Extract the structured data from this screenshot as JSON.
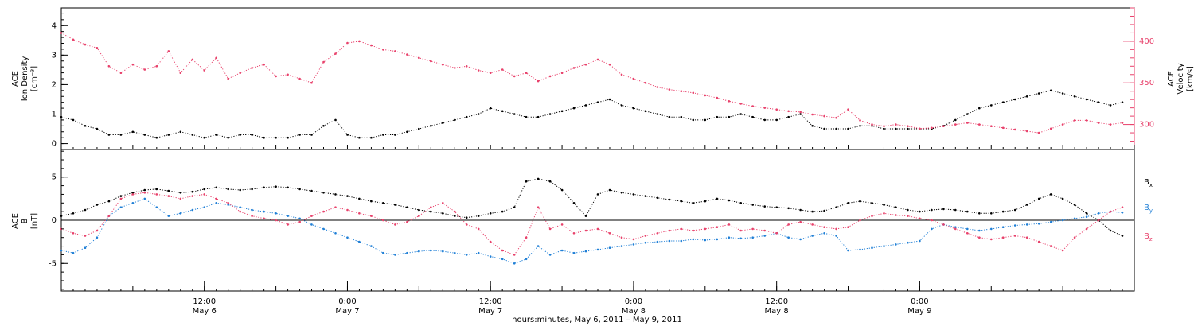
{
  "chart_data": [
    {
      "type": "scatter",
      "panel": "top",
      "ylabel": "ACE\nIon Density\n[cm⁻³]",
      "ylabel_lines": [
        "ACE",
        "Ion Density",
        "[cm⁻³]"
      ],
      "y2label_lines": [
        "ACE",
        "Velocity",
        "[km/s]"
      ],
      "xlim_hours": [
        0,
        90
      ],
      "ylim": [
        -0.2,
        4.6
      ],
      "y2lim": [
        270,
        440
      ],
      "yticks": [
        0,
        1,
        2,
        3,
        4
      ],
      "y2ticks": [
        300,
        350,
        400
      ],
      "grid": false,
      "series": [
        {
          "name": "Ion Density",
          "color": "#000000",
          "x": [
            0,
            1,
            2,
            3,
            4,
            5,
            6,
            7,
            8,
            9,
            10,
            11,
            12,
            13,
            14,
            15,
            16,
            17,
            18,
            19,
            20,
            21,
            22,
            23,
            24,
            25,
            26,
            27,
            28,
            29,
            30,
            31,
            32,
            33,
            34,
            35,
            36,
            37,
            38,
            39,
            40,
            41,
            42,
            43,
            44,
            45,
            46,
            47,
            48,
            49,
            50,
            51,
            52,
            53,
            54,
            55,
            56,
            57,
            58,
            59,
            60,
            61,
            62,
            63,
            64,
            65,
            66,
            67,
            68,
            69,
            70,
            71,
            72,
            73,
            74,
            75,
            76,
            77,
            78,
            79,
            80,
            81,
            82,
            83,
            84,
            85,
            86,
            87,
            88,
            89
          ],
          "y": [
            0.9,
            0.8,
            0.6,
            0.5,
            0.3,
            0.3,
            0.4,
            0.3,
            0.2,
            0.3,
            0.4,
            0.3,
            0.2,
            0.3,
            0.2,
            0.3,
            0.3,
            0.2,
            0.2,
            0.2,
            0.3,
            0.3,
            0.6,
            0.8,
            0.3,
            0.2,
            0.2,
            0.3,
            0.3,
            0.4,
            0.5,
            0.6,
            0.7,
            0.8,
            0.9,
            1.0,
            1.2,
            1.1,
            1.0,
            0.9,
            0.9,
            1.0,
            1.1,
            1.2,
            1.3,
            1.4,
            1.5,
            1.3,
            1.2,
            1.1,
            1.0,
            0.9,
            0.9,
            0.8,
            0.8,
            0.9,
            0.9,
            1.0,
            0.9,
            0.8,
            0.8,
            0.9,
            1.0,
            0.6,
            0.5,
            0.5,
            0.5,
            0.6,
            0.6,
            0.5,
            0.5,
            0.5,
            0.5,
            0.5,
            0.6,
            0.8,
            1.0,
            1.2,
            1.3,
            1.4,
            1.5,
            1.6,
            1.7,
            1.8,
            1.7,
            1.6,
            1.5,
            1.4,
            1.3,
            1.4
          ]
        },
        {
          "name": "Velocity",
          "color": "#e8416b",
          "axis": "right",
          "x": [
            0,
            1,
            2,
            3,
            4,
            5,
            6,
            7,
            8,
            9,
            10,
            11,
            12,
            13,
            14,
            15,
            16,
            17,
            18,
            19,
            20,
            21,
            22,
            23,
            24,
            25,
            26,
            27,
            28,
            29,
            30,
            31,
            32,
            33,
            34,
            35,
            36,
            37,
            38,
            39,
            40,
            41,
            42,
            43,
            44,
            45,
            46,
            47,
            48,
            49,
            50,
            51,
            52,
            53,
            54,
            55,
            56,
            57,
            58,
            59,
            60,
            61,
            62,
            63,
            64,
            65,
            66,
            67,
            68,
            69,
            70,
            71,
            72,
            73,
            74,
            75,
            76,
            77,
            78,
            79,
            80,
            81,
            82,
            83,
            84,
            85,
            86,
            87,
            88,
            89
          ],
          "y": [
            410,
            402,
            396,
            392,
            370,
            362,
            372,
            366,
            370,
            388,
            362,
            378,
            365,
            380,
            355,
            362,
            368,
            372,
            358,
            360,
            355,
            350,
            375,
            385,
            398,
            400,
            395,
            390,
            388,
            384,
            380,
            376,
            372,
            368,
            370,
            365,
            362,
            366,
            358,
            362,
            352,
            358,
            362,
            368,
            372,
            378,
            372,
            360,
            355,
            350,
            345,
            342,
            340,
            338,
            335,
            332,
            328,
            325,
            322,
            320,
            318,
            316,
            315,
            312,
            310,
            308,
            318,
            305,
            300,
            298,
            300,
            298,
            295,
            296,
            298,
            300,
            302,
            300,
            298,
            296,
            294,
            292,
            290,
            295,
            300,
            305,
            305,
            302,
            300,
            302
          ]
        }
      ]
    },
    {
      "type": "scatter",
      "panel": "bottom",
      "ylabel": "ACE\nB\n[nT]",
      "ylabel_lines": [
        "ACE",
        "B",
        "[nT]"
      ],
      "xlabel": "hours:minutes,  May  6, 2011 – May  9, 2011",
      "xlim_hours": [
        0,
        90
      ],
      "ylim": [
        -8.2,
        8.2
      ],
      "yticks": [
        -5,
        0,
        5
      ],
      "zero_line": true,
      "grid": false,
      "legend_placement": "right",
      "series": [
        {
          "name": "Bx",
          "label": "B",
          "sub": "x",
          "color": "#000000",
          "x": [
            0,
            1,
            2,
            3,
            4,
            5,
            6,
            7,
            8,
            9,
            10,
            11,
            12,
            13,
            14,
            15,
            16,
            17,
            18,
            19,
            20,
            21,
            22,
            23,
            24,
            25,
            26,
            27,
            28,
            29,
            30,
            31,
            32,
            33,
            34,
            35,
            36,
            37,
            38,
            39,
            40,
            41,
            42,
            43,
            44,
            45,
            46,
            47,
            48,
            49,
            50,
            51,
            52,
            53,
            54,
            55,
            56,
            57,
            58,
            59,
            60,
            61,
            62,
            63,
            64,
            65,
            66,
            67,
            68,
            69,
            70,
            71,
            72,
            73,
            74,
            75,
            76,
            77,
            78,
            79,
            80,
            81,
            82,
            83,
            84,
            85,
            86,
            87,
            88,
            89
          ],
          "y": [
            0.5,
            0.8,
            1.2,
            1.8,
            2.2,
            2.8,
            3.2,
            3.5,
            3.6,
            3.4,
            3.2,
            3.3,
            3.6,
            3.8,
            3.6,
            3.5,
            3.6,
            3.8,
            3.9,
            3.8,
            3.6,
            3.4,
            3.2,
            3.0,
            2.8,
            2.5,
            2.2,
            2.0,
            1.8,
            1.5,
            1.2,
            1.0,
            0.8,
            0.5,
            0.3,
            0.5,
            0.8,
            1.0,
            1.5,
            4.5,
            4.8,
            4.5,
            3.5,
            2.0,
            0.5,
            3.0,
            3.5,
            3.2,
            3.0,
            2.8,
            2.6,
            2.4,
            2.2,
            2.0,
            2.2,
            2.5,
            2.3,
            2.0,
            1.8,
            1.6,
            1.5,
            1.4,
            1.2,
            1.0,
            1.1,
            1.5,
            2.0,
            2.2,
            2.0,
            1.8,
            1.5,
            1.2,
            1.0,
            1.2,
            1.3,
            1.2,
            1.0,
            0.8,
            0.8,
            1.0,
            1.2,
            1.8,
            2.5,
            3.0,
            2.5,
            1.8,
            0.8,
            0.0,
            -1.2,
            -1.8
          ]
        },
        {
          "name": "By",
          "label": "B",
          "sub": "y",
          "color": "#1f7fd6",
          "x": [
            0,
            1,
            2,
            3,
            4,
            5,
            6,
            7,
            8,
            9,
            10,
            11,
            12,
            13,
            14,
            15,
            16,
            17,
            18,
            19,
            20,
            21,
            22,
            23,
            24,
            25,
            26,
            27,
            28,
            29,
            30,
            31,
            32,
            33,
            34,
            35,
            36,
            37,
            38,
            39,
            40,
            41,
            42,
            43,
            44,
            45,
            46,
            47,
            48,
            49,
            50,
            51,
            52,
            53,
            54,
            55,
            56,
            57,
            58,
            59,
            60,
            61,
            62,
            63,
            64,
            65,
            66,
            67,
            68,
            69,
            70,
            71,
            72,
            73,
            74,
            75,
            76,
            77,
            78,
            79,
            80,
            81,
            82,
            83,
            84,
            85,
            86,
            87,
            88,
            89
          ],
          "y": [
            -3.5,
            -3.8,
            -3.2,
            -2.0,
            0.5,
            1.5,
            2.0,
            2.5,
            1.5,
            0.5,
            0.8,
            1.2,
            1.5,
            2.0,
            1.8,
            1.5,
            1.2,
            1.0,
            0.8,
            0.5,
            0.2,
            -0.5,
            -1.0,
            -1.5,
            -2.0,
            -2.5,
            -3.0,
            -3.8,
            -4.0,
            -3.8,
            -3.6,
            -3.5,
            -3.6,
            -3.8,
            -4.0,
            -3.8,
            -4.2,
            -4.5,
            -5.0,
            -4.5,
            -3.0,
            -4.0,
            -3.5,
            -3.8,
            -3.6,
            -3.4,
            -3.2,
            -3.0,
            -2.8,
            -2.6,
            -2.5,
            -2.4,
            -2.4,
            -2.2,
            -2.3,
            -2.2,
            -2.0,
            -2.1,
            -2.0,
            -1.8,
            -1.5,
            -2.0,
            -2.2,
            -1.8,
            -1.5,
            -1.8,
            -3.5,
            -3.4,
            -3.2,
            -3.0,
            -2.8,
            -2.6,
            -2.4,
            -1.0,
            -0.5,
            -0.8,
            -1.0,
            -1.2,
            -1.0,
            -0.8,
            -0.6,
            -0.5,
            -0.4,
            -0.2,
            0.0,
            0.2,
            0.4,
            0.8,
            1.0,
            0.9
          ]
        },
        {
          "name": "Bz",
          "label": "B",
          "sub": "z",
          "color": "#e8416b",
          "x": [
            0,
            1,
            2,
            3,
            4,
            5,
            6,
            7,
            8,
            9,
            10,
            11,
            12,
            13,
            14,
            15,
            16,
            17,
            18,
            19,
            20,
            21,
            22,
            23,
            24,
            25,
            26,
            27,
            28,
            29,
            30,
            31,
            32,
            33,
            34,
            35,
            36,
            37,
            38,
            39,
            40,
            41,
            42,
            43,
            44,
            45,
            46,
            47,
            48,
            49,
            50,
            51,
            52,
            53,
            54,
            55,
            56,
            57,
            58,
            59,
            60,
            61,
            62,
            63,
            64,
            65,
            66,
            67,
            68,
            69,
            70,
            71,
            72,
            73,
            74,
            75,
            76,
            77,
            78,
            79,
            80,
            81,
            82,
            83,
            84,
            85,
            86,
            87,
            88,
            89
          ],
          "y": [
            -1.0,
            -1.5,
            -1.8,
            -1.2,
            0.5,
            2.5,
            3.0,
            3.2,
            3.0,
            2.8,
            2.5,
            2.8,
            3.0,
            2.5,
            2.0,
            1.0,
            0.5,
            0.2,
            0.0,
            -0.5,
            -0.2,
            0.5,
            1.0,
            1.5,
            1.2,
            0.8,
            0.5,
            0.0,
            -0.5,
            -0.2,
            0.5,
            1.5,
            2.0,
            1.0,
            -0.5,
            -1.0,
            -2.5,
            -3.5,
            -4.0,
            -2.0,
            1.5,
            -1.0,
            -0.5,
            -1.5,
            -1.2,
            -1.0,
            -1.5,
            -2.0,
            -2.2,
            -1.8,
            -1.5,
            -1.2,
            -1.0,
            -1.2,
            -1.0,
            -0.8,
            -0.5,
            -1.2,
            -1.0,
            -1.2,
            -1.5,
            -0.5,
            -0.2,
            -0.5,
            -0.8,
            -1.0,
            -0.8,
            0.0,
            0.5,
            0.8,
            0.6,
            0.5,
            0.2,
            0.0,
            -0.5,
            -1.0,
            -1.5,
            -2.0,
            -2.2,
            -2.0,
            -1.8,
            -2.0,
            -2.5,
            -3.0,
            -3.5,
            -2.0,
            -1.0,
            0.0,
            1.0,
            1.5
          ]
        }
      ]
    }
  ],
  "x_axis": {
    "ticks": [
      {
        "hour": 12,
        "time": "12:00",
        "date": "May 6"
      },
      {
        "hour": 24,
        "time": "0:00",
        "date": "May 7"
      },
      {
        "hour": 36,
        "time": "12:00",
        "date": "May 7"
      },
      {
        "hour": 48,
        "time": "0:00",
        "date": "May 8"
      },
      {
        "hour": 60,
        "time": "12:00",
        "date": "May 8"
      },
      {
        "hour": 72,
        "time": "0:00",
        "date": "May 9"
      }
    ],
    "label": "hours:minutes,  May  6, 2011 – May  9, 2011"
  },
  "colors": {
    "black": "#000000",
    "red": "#e8416b",
    "blue": "#1f7fd6"
  }
}
